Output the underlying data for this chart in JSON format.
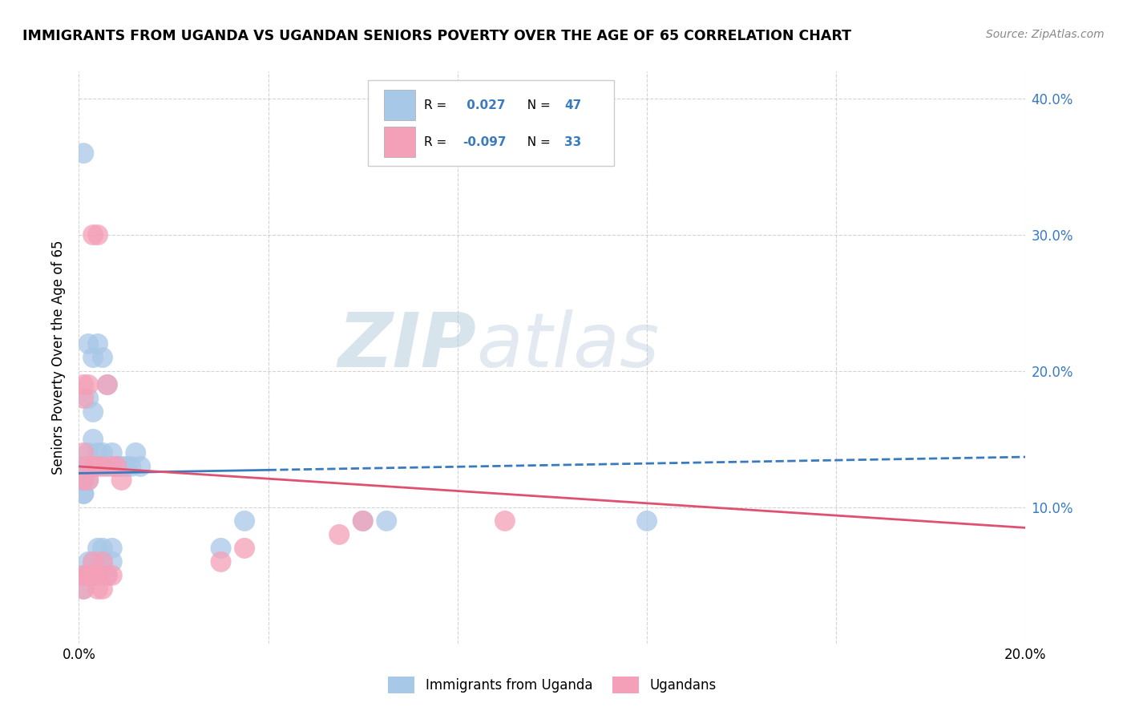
{
  "title": "IMMIGRANTS FROM UGANDA VS UGANDAN SENIORS POVERTY OVER THE AGE OF 65 CORRELATION CHART",
  "source": "Source: ZipAtlas.com",
  "ylabel": "Seniors Poverty Over the Age of 65",
  "xlim": [
    0.0,
    0.2
  ],
  "ylim": [
    0.0,
    0.42
  ],
  "blue_color": "#a8c8e8",
  "pink_color": "#f4a0b8",
  "blue_line_color": "#3a7abf",
  "pink_line_color": "#e05070",
  "R_blue": 0.027,
  "N_blue": 47,
  "R_pink": -0.097,
  "N_pink": 33,
  "watermark_zip": "ZIP",
  "watermark_atlas": "atlas",
  "legend_label_blue": "Immigrants from Uganda",
  "legend_label_pink": "Ugandans",
  "blue_x": [
    0.001,
    0.001,
    0.001,
    0.001,
    0.001,
    0.001,
    0.001,
    0.001,
    0.002,
    0.002,
    0.002,
    0.002,
    0.002,
    0.002,
    0.003,
    0.003,
    0.003,
    0.003,
    0.003,
    0.004,
    0.004,
    0.004,
    0.005,
    0.005,
    0.005,
    0.006,
    0.006,
    0.007,
    0.007,
    0.008,
    0.009,
    0.01,
    0.011,
    0.012,
    0.013,
    0.03,
    0.035,
    0.06,
    0.065,
    0.12,
    0.001,
    0.002,
    0.003,
    0.004,
    0.005,
    0.006,
    0.007
  ],
  "blue_y": [
    0.36,
    0.13,
    0.13,
    0.12,
    0.12,
    0.11,
    0.11,
    0.05,
    0.22,
    0.18,
    0.14,
    0.13,
    0.12,
    0.06,
    0.21,
    0.17,
    0.15,
    0.13,
    0.06,
    0.22,
    0.14,
    0.07,
    0.21,
    0.14,
    0.07,
    0.19,
    0.13,
    0.14,
    0.06,
    0.13,
    0.13,
    0.13,
    0.13,
    0.14,
    0.13,
    0.07,
    0.09,
    0.09,
    0.09,
    0.09,
    0.04,
    0.05,
    0.05,
    0.05,
    0.06,
    0.05,
    0.07
  ],
  "pink_x": [
    0.001,
    0.001,
    0.001,
    0.001,
    0.001,
    0.002,
    0.002,
    0.002,
    0.002,
    0.003,
    0.003,
    0.003,
    0.004,
    0.004,
    0.004,
    0.005,
    0.005,
    0.006,
    0.006,
    0.007,
    0.007,
    0.008,
    0.009,
    0.03,
    0.035,
    0.055,
    0.06,
    0.09,
    0.001,
    0.002,
    0.003,
    0.004,
    0.005
  ],
  "pink_y": [
    0.19,
    0.18,
    0.14,
    0.12,
    0.04,
    0.19,
    0.13,
    0.12,
    0.05,
    0.3,
    0.13,
    0.06,
    0.3,
    0.13,
    0.05,
    0.13,
    0.06,
    0.19,
    0.05,
    0.13,
    0.05,
    0.13,
    0.12,
    0.06,
    0.07,
    0.08,
    0.09,
    0.09,
    0.05,
    0.05,
    0.05,
    0.04,
    0.04
  ]
}
